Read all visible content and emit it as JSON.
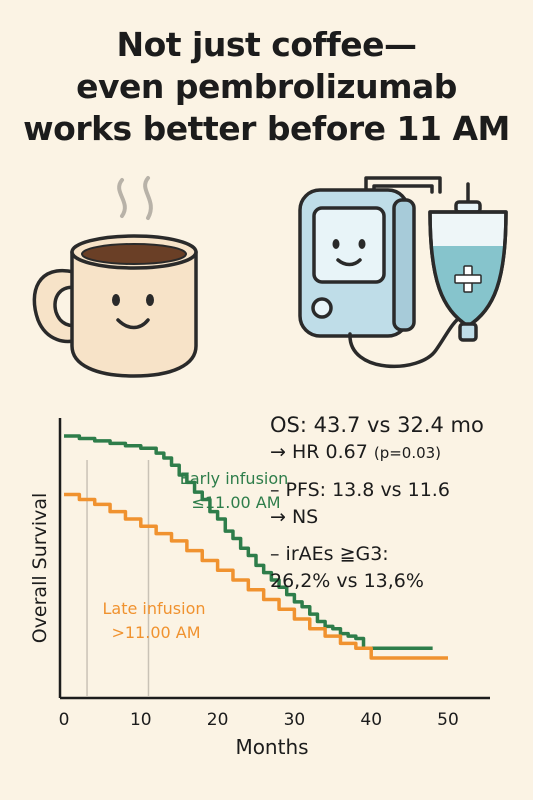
{
  "title": {
    "line1": "Not just coffee—",
    "line2": "even pembrolizumab",
    "line3": "works better before 11 AM"
  },
  "illustrations": {
    "left": "coffee-mug-icon",
    "right": "infusion-pump-icon"
  },
  "stats": {
    "os": "OS:   43.7 vs 32.4 mo",
    "hr": "→ HR 0.67",
    "hr_p": "(p=0.03)",
    "pfs": "– PFS: 13.8 vs 11.6",
    "pfs_ns": "→ NS",
    "irae_1": "– irAEs ≧G3:",
    "irae_2": "26,2% vs 13,6%"
  },
  "chart_data": {
    "type": "line",
    "step": true,
    "xlabel": "Months",
    "ylabel": "Overall Survival",
    "xlim": [
      0,
      50
    ],
    "ylim": [
      0,
      1
    ],
    "xticks": [
      0,
      10,
      20,
      30,
      40,
      50
    ],
    "vlines": [
      3,
      11
    ],
    "grid": false,
    "series": [
      {
        "name": "Early infusion",
        "sublabel": "≤11.00 AM",
        "color": "#2e7d4a",
        "x": [
          0,
          2,
          4,
          6,
          8,
          10,
          12,
          13,
          14,
          15,
          16,
          17,
          18,
          19,
          20,
          21,
          22,
          23,
          24,
          25,
          26,
          27,
          28,
          29,
          30,
          31,
          32,
          33,
          34,
          35,
          36,
          37,
          38,
          39,
          48
        ],
        "y": [
          1.0,
          0.99,
          0.98,
          0.97,
          0.96,
          0.95,
          0.93,
          0.91,
          0.88,
          0.84,
          0.81,
          0.77,
          0.74,
          0.69,
          0.66,
          0.61,
          0.58,
          0.54,
          0.51,
          0.47,
          0.44,
          0.41,
          0.38,
          0.35,
          0.32,
          0.3,
          0.27,
          0.24,
          0.22,
          0.21,
          0.19,
          0.18,
          0.17,
          0.13,
          0.13
        ]
      },
      {
        "name": "Late infusion",
        "sublabel": ">11.00 AM",
        "color": "#f0922f",
        "x": [
          0,
          2,
          4,
          6,
          8,
          10,
          12,
          14,
          16,
          18,
          20,
          22,
          24,
          26,
          28,
          30,
          32,
          34,
          36,
          38,
          40,
          50
        ],
        "y": [
          0.76,
          0.74,
          0.72,
          0.69,
          0.66,
          0.63,
          0.6,
          0.57,
          0.53,
          0.49,
          0.45,
          0.41,
          0.37,
          0.33,
          0.29,
          0.25,
          0.21,
          0.18,
          0.15,
          0.13,
          0.09,
          0.09
        ]
      }
    ]
  }
}
